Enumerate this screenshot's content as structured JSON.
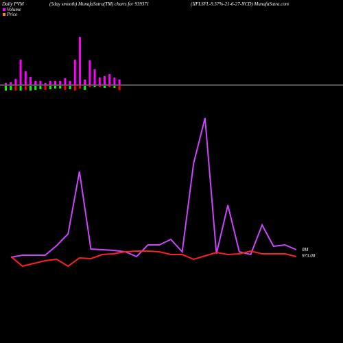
{
  "chart_data": {
    "type": "pvm",
    "title": "Daily PVM",
    "subtitle": "(5day smooth) MunafaSutra(TM) charts for 939371",
    "name": "(IIFLSFL-9.57%-21-6-27-NCD) MunafaSutra.com",
    "legend": [
      {
        "name": "Volume",
        "color": "#ff00ff"
      },
      {
        "name": "Price",
        "color": "#ff8c00"
      }
    ],
    "bars": {
      "values": [
        3,
        4,
        9,
        37,
        20,
        12,
        6,
        6,
        3,
        6,
        6,
        6,
        10,
        6,
        37,
        70,
        8,
        36,
        23,
        11,
        13,
        16,
        11,
        8
      ],
      "color": "#ff00ff",
      "down_values": [
        7,
        6,
        7,
        7,
        6,
        7,
        6,
        5,
        6,
        5,
        4,
        4,
        6,
        5,
        7,
        4,
        6,
        2,
        2,
        2,
        3,
        2,
        3,
        6
      ],
      "down_colors": [
        "#00ff00",
        "#00ff00",
        "#ff0000",
        "#00ff00",
        "#ff0000",
        "#00ff00",
        "#00ff00",
        "#00ff00",
        "#ff0000",
        "#00ff00",
        "#00ff00",
        "#00ff00",
        "#ff0000",
        "#00ff00",
        "#ff0000",
        "#ff0000",
        "#00ff00",
        "#ff0000",
        "#00ff00",
        "#ff0000",
        "#00ff00",
        "#ff0000",
        "#00ff00",
        "#ff0000"
      ],
      "ylim": [
        0,
        100
      ]
    },
    "series": [
      {
        "name": "Volume",
        "color": "#cc44ff",
        "values": [
          25,
          28,
          28,
          28,
          42,
          59,
          150,
          37,
          36,
          35,
          33,
          26,
          43,
          43,
          51,
          33,
          162,
          228,
          30,
          101,
          33,
          29,
          72,
          41,
          43,
          36
        ],
        "end_label": "0M"
      },
      {
        "name": "Price",
        "color": "#ff2020",
        "values": [
          26,
          12,
          16,
          20,
          22,
          12,
          24,
          23,
          29,
          30,
          33,
          34,
          34,
          33,
          29,
          29,
          22,
          27,
          32,
          29,
          30,
          34,
          30,
          30,
          30,
          26
        ],
        "end_label": "973.00"
      }
    ],
    "ylim": [
      0,
      250
    ]
  }
}
